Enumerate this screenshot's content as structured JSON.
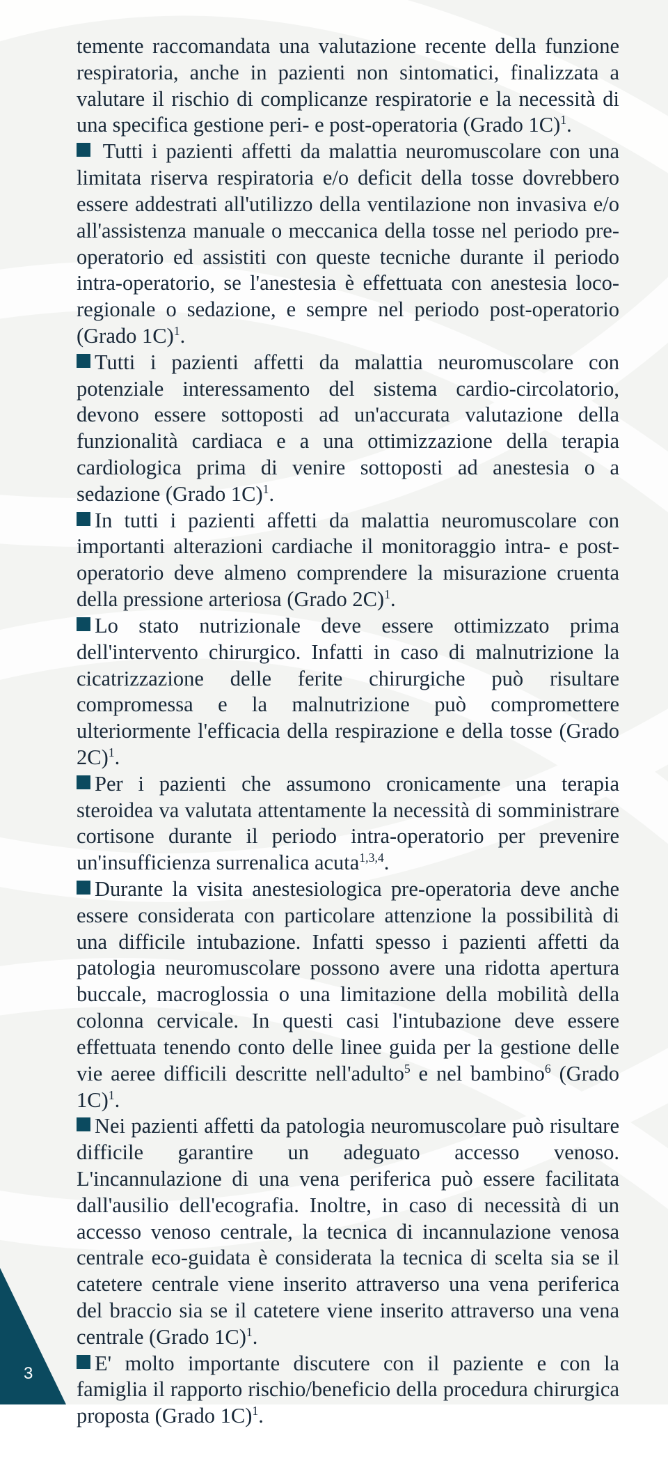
{
  "background": {
    "base_color": "#f3f4f2",
    "swirl_stroke": "#ffffff",
    "swirl_opacity": 0.85,
    "corner_fill": "#0b4a5f"
  },
  "text_color": "#182838",
  "bullet_color": "#0b4a5f",
  "font_size_pt": 23,
  "page_number": "3",
  "first_paragraph": "temente raccomandata una valutazione recente della funzione respiratoria, anche in pazienti non sintomatici, finalizzata a valutare il rischio di complicanze respiratorie e la necessità di una specifica gestione peri- e post-operatoria (Grado 1C)",
  "first_paragraph_sup": "1",
  "items": [
    {
      "text": " Tutti i pazienti affetti da malattia neuromuscolare con una limitata riserva respiratoria e/o deficit della tosse dovrebbero essere addestrati all'utilizzo della ventilazione non invasiva e/o all'assistenza manuale o meccanica della tosse nel periodo pre-operatorio ed assistiti con queste tecniche durante il periodo intra-operatorio, se l'anestesia è effettuata con anestesia loco-regionale o sedazione, e sempre nel periodo post-operatorio (Grado 1C)",
      "sup": "1",
      "tail": "."
    },
    {
      "text": "Tutti i pazienti affetti da malattia neuromuscolare con potenziale interessamento del sistema cardio-circolatorio, devono essere sottoposti ad un'accurata valutazione della funzionalità cardiaca e a una ottimizzazione della terapia cardiologica prima di venire sottoposti ad anestesia o a sedazione (Grado 1C)",
      "sup": "1",
      "tail": "."
    },
    {
      "text": "In tutti i pazienti affetti da malattia neuromuscolare con importanti alterazioni cardiache il monitoraggio intra- e post-operatorio deve almeno comprendere la misurazione cruenta della pressione arteriosa (Grado 2C)",
      "sup": "1",
      "tail": "."
    },
    {
      "text": "Lo stato nutrizionale deve essere ottimizzato prima dell'intervento chirurgico. Infatti in caso di malnutrizione la cicatrizzazione delle ferite chirurgiche può risultare compromessa e la malnutrizione può compromettere ulteriormente l'efficacia della respirazione e della tosse (Grado 2C)",
      "sup": "1",
      "tail": "."
    },
    {
      "text": "Per i pazienti che assumono cronicamente una terapia steroidea va valutata attentamente la necessità di somministrare cortisone durante il periodo intra-operatorio per prevenire un'insufficienza surrenalica acuta",
      "sup": "1,3,4",
      "tail": "."
    },
    {
      "text": "Durante la visita anestesiologica pre-operatoria deve anche essere considerata con particolare attenzione la possibilità di una difficile intubazione. Infatti spesso i pazienti affetti da patologia neuromuscolare possono avere una ridotta apertura buccale, macroglossia o una limitazione della mobilità della colonna cervicale. In questi casi l'intubazione deve essere effettuata tenendo conto delle linee guida per la gestione delle vie aeree difficili descritte nell'adulto",
      "sup": "5",
      "tail_text": " e nel bambino",
      "sup2": "6",
      "tail_text2": " (Grado 1C)",
      "sup3": "1",
      "tail": "."
    },
    {
      "text": "Nei pazienti affetti da patologia neuromuscolare può risultare difficile garantire un adeguato accesso venoso. L'incannulazione di una vena periferica può essere facilitata dall'ausilio dell'ecografia. Inoltre, in caso di necessità di un accesso venoso centrale, la tecnica di incannulazione venosa centrale eco-guidata è considerata la tecnica di scelta sia se il catetere centrale viene inserito attraverso una vena periferica del braccio sia se il catetere viene inserito attraverso una vena centrale (Grado 1C)",
      "sup": "1",
      "tail": "."
    },
    {
      "text": "E' molto importante discutere con il paziente e con la famiglia il rapporto rischio/beneficio della procedura chirurgica proposta (Grado 1C)",
      "sup": "1",
      "tail": "."
    }
  ]
}
